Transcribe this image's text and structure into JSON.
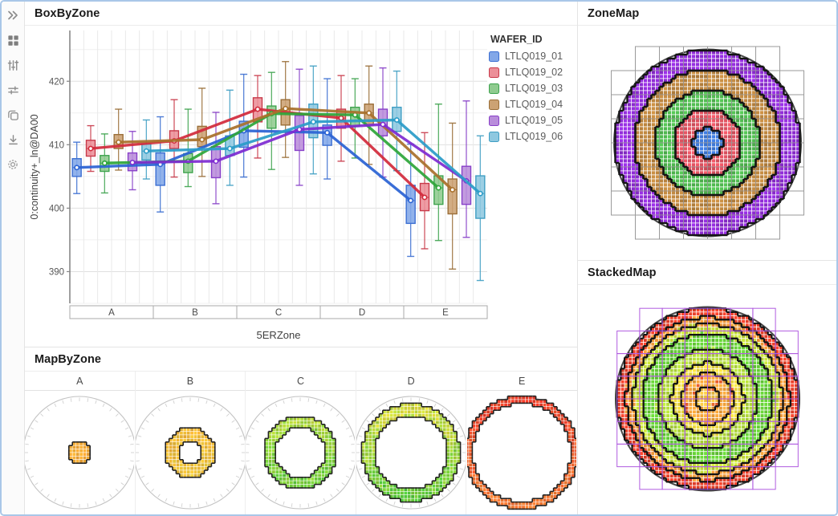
{
  "window": {
    "border_color": "#A9C7E8",
    "background": "#FFFFFF"
  },
  "sidebar": {
    "icons": [
      {
        "name": "collapse-panel",
        "glyph": "chevrons-right"
      },
      {
        "name": "dashboard-grid",
        "glyph": "grid"
      },
      {
        "name": "filters-vertical-sliders",
        "glyph": "sliders-vertical"
      },
      {
        "name": "settings-horizontal-sliders",
        "glyph": "sliders-horizontal"
      },
      {
        "name": "copy-pages",
        "glyph": "copy"
      },
      {
        "name": "download",
        "glyph": "download"
      },
      {
        "name": "settings-gear",
        "glyph": "gear"
      }
    ]
  },
  "panels": {
    "box_by_zone": {
      "title": "BoxByZone"
    },
    "zone_map": {
      "title": "ZoneMap"
    },
    "stacked_map": {
      "title": "StackedMap"
    },
    "map_by_zone": {
      "title": "MapByZone"
    }
  },
  "chart_data": [
    {
      "id": "box_by_zone",
      "type": "box",
      "title": "BoxByZone",
      "xlabel": "5ERZone",
      "ylabel": "0:continuity+_ln@DA00",
      "ylim": [
        385,
        428
      ],
      "yticks": [
        390,
        400,
        410,
        420
      ],
      "categories": [
        "A",
        "B",
        "C",
        "D",
        "E"
      ],
      "legend_title": "WAFER_ID",
      "grid": true,
      "legend_position": "right",
      "box_stats_order": [
        "whisker_low",
        "q1",
        "mean",
        "q3",
        "whisker_high"
      ],
      "series": [
        {
          "name": "LTLQ019_01",
          "fill": "#82A7E8",
          "stroke": "#3C6FD2",
          "line": "#2B63D4",
          "boxes": [
            [
              402.3,
              405.0,
              406.4,
              407.8,
              410.4
            ],
            [
              399.4,
              403.6,
              406.9,
              408.7,
              414.4
            ],
            [
              404.9,
              409.6,
              412.2,
              413.7,
              421.1
            ],
            [
              404.6,
              409.9,
              411.9,
              413.1,
              420.4
            ],
            [
              392.4,
              397.6,
              401.2,
              403.6,
              410.1
            ]
          ]
        },
        {
          "name": "LTLQ019_02",
          "fill": "#EC8F98",
          "stroke": "#C83A4A",
          "line": "#D22B3C",
          "boxes": [
            [
              405.8,
              408.2,
              409.4,
              410.7,
              413.0
            ],
            [
              404.9,
              409.4,
              410.6,
              412.2,
              417.1
            ],
            [
              407.9,
              413.6,
              415.6,
              417.4,
              420.9
            ],
            [
              407.4,
              412.6,
              414.2,
              415.6,
              420.9
            ],
            [
              393.6,
              399.6,
              401.7,
              403.9,
              411.9
            ]
          ]
        },
        {
          "name": "LTLQ019_03",
          "fill": "#8FCB8F",
          "stroke": "#3EA34E",
          "line": "#2EA63A",
          "boxes": [
            [
              402.4,
              405.8,
              407.1,
              408.3,
              411.7
            ],
            [
              403.4,
              405.6,
              407.4,
              408.6,
              415.6
            ],
            [
              406.1,
              412.6,
              414.9,
              416.1,
              421.4
            ],
            [
              407.9,
              412.9,
              414.7,
              415.9,
              420.4
            ],
            [
              394.9,
              400.6,
              403.2,
              405.1,
              416.4
            ]
          ]
        },
        {
          "name": "LTLQ019_04",
          "fill": "#CCA273",
          "stroke": "#9A6E38",
          "line": "#A9712C",
          "boxes": [
            [
              406.0,
              409.4,
              410.4,
              411.6,
              415.6
            ],
            [
              405.0,
              409.7,
              410.8,
              412.9,
              418.9
            ],
            [
              408.0,
              413.1,
              415.7,
              417.1,
              423.1
            ],
            [
              406.9,
              413.1,
              415.0,
              416.4,
              422.4
            ],
            [
              390.4,
              399.1,
              402.9,
              404.6,
              413.4
            ]
          ]
        },
        {
          "name": "LTLQ019_05",
          "fill": "#B98DDB",
          "stroke": "#8840C8",
          "line": "#7E2BD2",
          "boxes": [
            [
              402.9,
              405.9,
              407.2,
              408.7,
              412.1
            ],
            [
              400.7,
              404.8,
              407.4,
              409.7,
              415.1
            ],
            [
              403.6,
              409.1,
              412.4,
              414.6,
              421.9
            ],
            [
              404.9,
              411.4,
              413.2,
              415.6,
              422.1
            ],
            [
              395.4,
              400.6,
              404.3,
              406.6,
              416.9
            ]
          ]
        },
        {
          "name": "LTLQ019_06",
          "fill": "#8EC8E0",
          "stroke": "#3F9EC3",
          "line": "#2B9CC8",
          "boxes": [
            [
              404.6,
              407.6,
              409.0,
              410.1,
              413.9
            ],
            [
              403.6,
              408.3,
              409.4,
              411.4,
              418.6
            ],
            [
              405.4,
              411.1,
              413.6,
              416.4,
              422.4
            ],
            [
              405.9,
              412.1,
              413.9,
              415.9,
              421.6
            ],
            [
              388.6,
              398.4,
              402.3,
              405.1,
              411.4
            ]
          ]
        }
      ]
    },
    {
      "id": "zone_map",
      "type": "heatmap",
      "title": "ZoneMap",
      "description": "wafer map colored by 5ERZone",
      "zones": [
        {
          "label": "A",
          "r": 0.16,
          "color": "#3D78D8"
        },
        {
          "label": "B",
          "r": 0.37,
          "color": "#DE5260"
        },
        {
          "label": "C",
          "r": 0.57,
          "color": "#4FB84F"
        },
        {
          "label": "D",
          "r": 0.79,
          "color": "#BC853F"
        },
        {
          "label": "E",
          "r": 1.0,
          "color": "#8E2CD4"
        }
      ],
      "shot_grid_color": "#9A9A9A",
      "boundary_color": "#141414",
      "wafer_outline_color": "#4A4A4A"
    },
    {
      "id": "stacked_map",
      "type": "heatmap",
      "title": "StackedMap",
      "description": "stacked wafer heatmap with zone boundary rings",
      "bands": [
        {
          "r": 0.13,
          "color": "#F0BE42"
        },
        {
          "r": 0.28,
          "color": "#F0A038"
        },
        {
          "r": 0.4,
          "color": "#E8D43A"
        },
        {
          "r": 0.55,
          "color": "#AFD838"
        },
        {
          "r": 0.72,
          "color": "#63CB34"
        },
        {
          "r": 0.82,
          "color": "#C2DA38"
        },
        {
          "r": 0.9,
          "color": "#F09838"
        },
        {
          "r": 1.0,
          "color": "#E8402A"
        }
      ],
      "shot_grid_color": "#B05CE0",
      "boundary_color": "#141414",
      "wafer_outline_color": "#4A4A4A"
    },
    {
      "id": "map_by_zone",
      "type": "heatmap-small-multiples",
      "title": "MapByZone",
      "categories": [
        "A",
        "B",
        "C",
        "D",
        "E"
      ],
      "zones": [
        {
          "label": "A",
          "r0": 0.0,
          "r1": 0.2,
          "color_top": "#F4B43A",
          "color_bottom": "#F2A031"
        },
        {
          "label": "B",
          "r0": 0.2,
          "r1": 0.44,
          "color_top": "#F0A833",
          "color_bottom": "#E4CC3A"
        },
        {
          "label": "C",
          "r0": 0.44,
          "r1": 0.64,
          "color_top": "#C2DA39",
          "color_bottom": "#55C63A"
        },
        {
          "label": "D",
          "r0": 0.64,
          "r1": 0.86,
          "color_top": "#E0DA39",
          "color_bottom": "#4EC338"
        },
        {
          "label": "E",
          "r0": 0.86,
          "r1": 1.0,
          "color_top": "#E93A28",
          "color_bottom": "#EF7E33"
        }
      ],
      "circle_color": "#C2C2C2",
      "tick_color": "#CCCCCC",
      "boundary_color": "#222222"
    }
  ]
}
